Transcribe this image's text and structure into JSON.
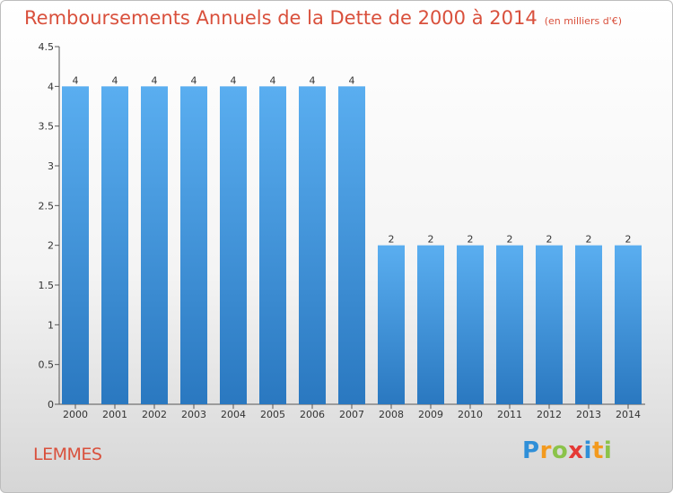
{
  "title": "Remboursements Annuels de la Dette de 2000 à 2014",
  "unit_note": "(en milliers d'€)",
  "commune": "LEMMES",
  "logo_text": "Proxiti",
  "colors": {
    "bar_top": "#5aaef0",
    "bar_bottom": "#2a78c0",
    "title": "#d9503c"
  },
  "chart_data": {
    "type": "bar",
    "title": "Remboursements Annuels de la Dette de 2000 à 2014",
    "xlabel": "",
    "ylabel": "",
    "categories": [
      "2000",
      "2001",
      "2002",
      "2003",
      "2004",
      "2005",
      "2006",
      "2007",
      "2008",
      "2009",
      "2010",
      "2011",
      "2012",
      "2013",
      "2014"
    ],
    "values": [
      4,
      4,
      4,
      4,
      4,
      4,
      4,
      4,
      2,
      2,
      2,
      2,
      2,
      2,
      2
    ],
    "data_labels": [
      "4",
      "4",
      "4",
      "4",
      "4",
      "4",
      "4",
      "4",
      "2",
      "2",
      "2",
      "2",
      "2",
      "2",
      "2"
    ],
    "y_ticks": [
      "0",
      "0.5",
      "1",
      "1.5",
      "2",
      "2.5",
      "3",
      "3.5",
      "4",
      "4.5"
    ],
    "ylim": [
      0,
      4.5
    ],
    "grid": false,
    "legend": "none"
  }
}
